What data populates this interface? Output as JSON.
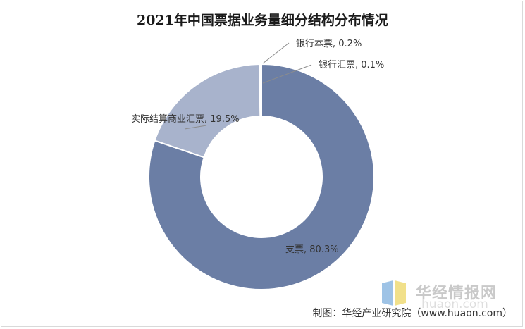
{
  "chart_data": {
    "type": "donut",
    "title": "2021年中国票据业务量细分结构分布情况",
    "categories": [
      "支票",
      "实际结算商业汇票",
      "银行本票",
      "银行汇票"
    ],
    "values": [
      80.3,
      19.5,
      0.2,
      0.1
    ],
    "unit": "%",
    "labels": [
      "支票, 80.3%",
      "实际结算商业汇票, 19.5%",
      "银行本票, 0.2%",
      "银行汇票, 0.1%"
    ],
    "colors": [
      "#6b7ea5",
      "#a8b3cc",
      "#6b7ea5",
      "#6b7ea5"
    ],
    "legend": "none"
  },
  "watermark": {
    "name": "华经情报网",
    "domain": "huaon.com"
  },
  "source": "制图：华经产业研究院（www.huaon.com）"
}
